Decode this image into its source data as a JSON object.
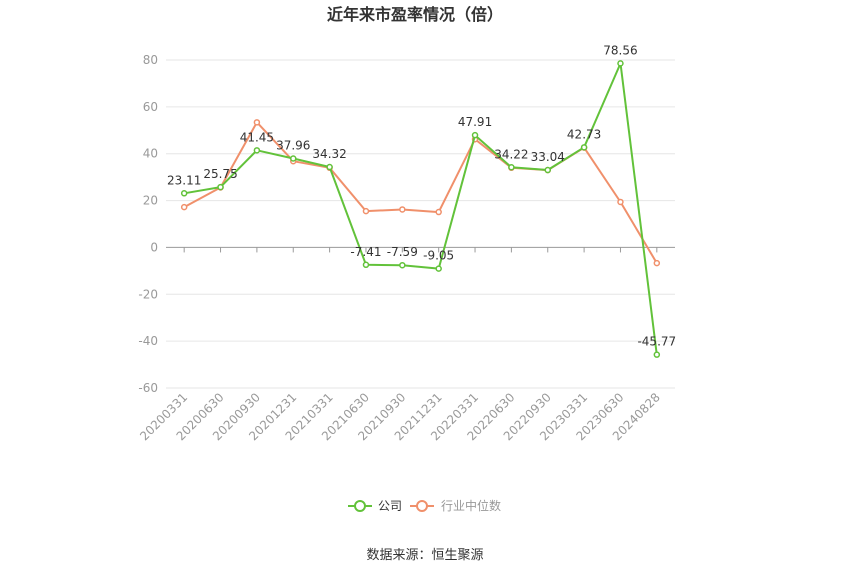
{
  "chart_data": {
    "type": "line",
    "title": "近年来市盈率情况（倍）",
    "categories": [
      "20200331",
      "20200630",
      "20200930",
      "20201231",
      "20210331",
      "20210630",
      "20210930",
      "20211231",
      "20220331",
      "20220630",
      "20220930",
      "20230331",
      "20230630",
      "20240828"
    ],
    "ylim": [
      -60,
      80
    ],
    "yticks": [
      80,
      60,
      40,
      20,
      0,
      -20,
      -40,
      -60
    ],
    "grid": true,
    "legend_position": "bottom",
    "series": [
      {
        "name": "公司",
        "color": "#62c23a",
        "data_labels": true,
        "values": [
          23.11,
          25.75,
          41.45,
          37.96,
          34.32,
          -7.41,
          -7.59,
          -9.05,
          47.91,
          34.22,
          33.04,
          42.73,
          78.56,
          -45.77
        ]
      },
      {
        "name": "行业中位数",
        "color": "#f0906b",
        "data_labels": false,
        "values": [
          17.2,
          25.6,
          53.4,
          36.8,
          34.0,
          15.5,
          16.2,
          15.1,
          46.2,
          34.0,
          33.0,
          42.6,
          19.4,
          -6.7
        ]
      }
    ]
  },
  "source": "数据来源：恒生聚源"
}
